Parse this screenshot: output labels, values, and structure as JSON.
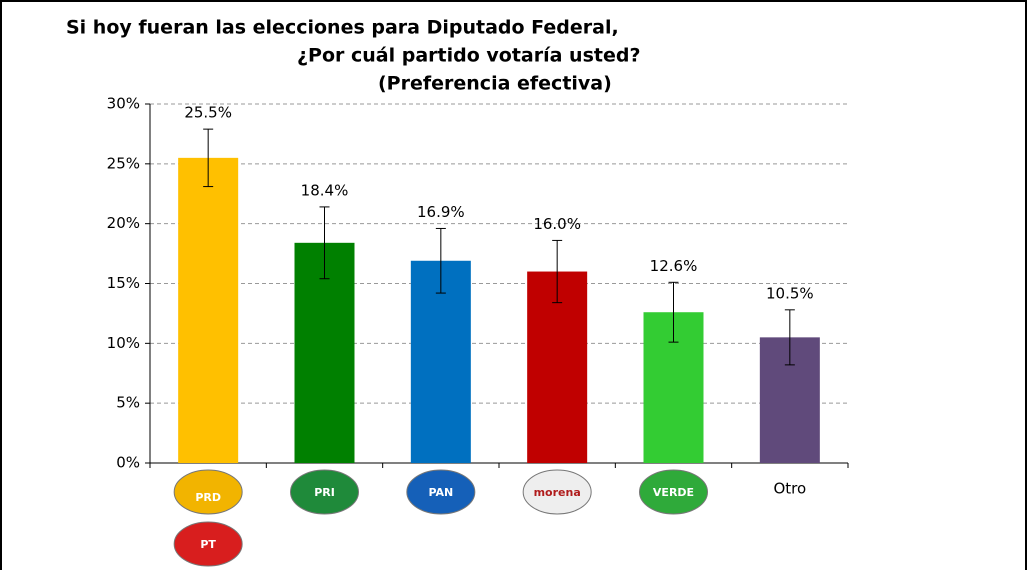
{
  "chart_data": {
    "type": "bar",
    "title": [
      "Si hoy fueran las elecciones para Diputado Federal,",
      "¿Por cuál partido votaría usted?",
      "(Preferencia efectiva)"
    ],
    "categories": [
      [
        "PRD",
        "PT"
      ],
      [
        "PRI"
      ],
      [
        "PAN"
      ],
      [
        "morena"
      ],
      [
        "VERDE"
      ],
      [
        "Otro"
      ]
    ],
    "logos": [
      true,
      true,
      true,
      true,
      true,
      false
    ],
    "logo_colors": [
      [
        "#f2b400",
        "#d81e1e"
      ],
      [
        "#1f8a3a"
      ],
      [
        "#1560b8"
      ],
      [
        "#eeeeee"
      ],
      [
        "#2faa3a"
      ],
      [
        null
      ]
    ],
    "values": [
      25.5,
      18.4,
      16.9,
      16.0,
      12.6,
      10.5
    ],
    "value_labels": [
      "25.5%",
      "18.4%",
      "16.9%",
      "16.0%",
      "12.6%",
      "10.5%"
    ],
    "errors": [
      2.4,
      3.0,
      2.7,
      2.6,
      2.5,
      2.3
    ],
    "colors": [
      "#FFC000",
      "#008000",
      "#0070C0",
      "#C00000",
      "#33CC33",
      "#604A7B"
    ],
    "ylim": [
      0,
      30
    ],
    "yticks": [
      {
        "value": 0,
        "label": "0%"
      },
      {
        "value": 5,
        "label": "5%"
      },
      {
        "value": 10,
        "label": "10%"
      },
      {
        "value": 15,
        "label": "15%"
      },
      {
        "value": 20,
        "label": "20%"
      },
      {
        "value": 25,
        "label": "25%"
      },
      {
        "value": 30,
        "label": "30%"
      }
    ],
    "grid": true
  }
}
